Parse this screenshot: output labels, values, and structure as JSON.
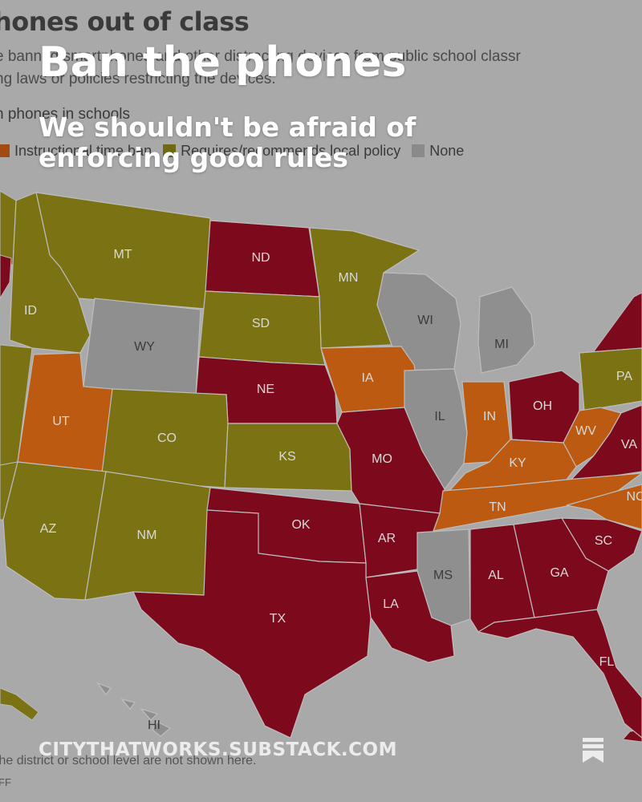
{
  "map": {
    "title": "hones out of class",
    "subtitle_line1": "e banned smartphones and other distracting devices from public school classr",
    "subtitle_line2": "ng laws or policies restricting the devices.",
    "legend_title": "n phones in schools",
    "legend": [
      {
        "label": "Instructional time ban",
        "color": "#a34a12"
      },
      {
        "label": "Requires/recommends local policy",
        "color": "#6f6a12"
      },
      {
        "label": "None",
        "color": "#8a8a8a"
      }
    ],
    "category_colors": {
      "full_ban": "#7d0a1c",
      "instructional": "#bb5a10",
      "policy": "#7a7213",
      "none": "#8f8f8f"
    },
    "states": [
      {
        "abbr": "MT",
        "category": "policy"
      },
      {
        "abbr": "ND",
        "category": "full_ban"
      },
      {
        "abbr": "MN",
        "category": "policy"
      },
      {
        "abbr": "ID",
        "category": "policy"
      },
      {
        "abbr": "WY",
        "category": "none"
      },
      {
        "abbr": "SD",
        "category": "policy"
      },
      {
        "abbr": "WI",
        "category": "none"
      },
      {
        "abbr": "MI",
        "category": "none"
      },
      {
        "abbr": "NE",
        "category": "full_ban"
      },
      {
        "abbr": "IA",
        "category": "instructional"
      },
      {
        "abbr": "PA",
        "category": "policy"
      },
      {
        "abbr": "UT",
        "category": "instructional"
      },
      {
        "abbr": "CO",
        "category": "policy"
      },
      {
        "abbr": "IL",
        "category": "none"
      },
      {
        "abbr": "IN",
        "category": "instructional"
      },
      {
        "abbr": "OH",
        "category": "full_ban"
      },
      {
        "abbr": "WV",
        "category": "instructional"
      },
      {
        "abbr": "VA",
        "category": "full_ban"
      },
      {
        "abbr": "KS",
        "category": "policy"
      },
      {
        "abbr": "MO",
        "category": "full_ban"
      },
      {
        "abbr": "KY",
        "category": "instructional"
      },
      {
        "abbr": "TN",
        "category": "instructional"
      },
      {
        "abbr": "NC",
        "category": "instructional"
      },
      {
        "abbr": "AZ",
        "category": "policy"
      },
      {
        "abbr": "NM",
        "category": "policy"
      },
      {
        "abbr": "OK",
        "category": "full_ban"
      },
      {
        "abbr": "AR",
        "category": "full_ban"
      },
      {
        "abbr": "SC",
        "category": "full_ban"
      },
      {
        "abbr": "MS",
        "category": "none"
      },
      {
        "abbr": "AL",
        "category": "full_ban"
      },
      {
        "abbr": "GA",
        "category": "full_ban"
      },
      {
        "abbr": "TX",
        "category": "full_ban"
      },
      {
        "abbr": "LA",
        "category": "full_ban"
      },
      {
        "abbr": "FL",
        "category": "full_ban"
      },
      {
        "abbr": "HI",
        "category": "none"
      }
    ],
    "footnote": "the district or school level are not shown here.",
    "source": "FF"
  },
  "overlay": {
    "title": "Ban the phones",
    "subtitle": "We shouldn't be afraid of enforcing good rules",
    "site_url": "CITYTHATWORKS.SUBSTACK.COM",
    "bookmark_icon": "bookmark-icon"
  }
}
